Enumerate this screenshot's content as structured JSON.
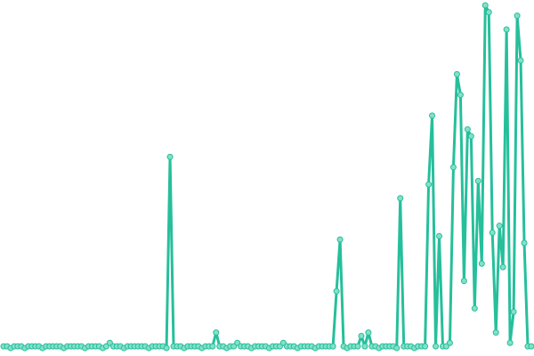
{
  "chart_data": {
    "type": "line",
    "color": "#26bf9b",
    "marker_fill": "#84e0c8",
    "ylim": [
      0,
      100
    ],
    "values": [
      1,
      1,
      0.5,
      1,
      1,
      1,
      0.5,
      1,
      1,
      1,
      1,
      0.5,
      1,
      1,
      1,
      1,
      1,
      0.5,
      1,
      1,
      1,
      1,
      1,
      0.5,
      1,
      1,
      1,
      1,
      0.5,
      1,
      2,
      1,
      1,
      1,
      0.5,
      1,
      1,
      1,
      1,
      1,
      1,
      0.5,
      1,
      1,
      1,
      1,
      0.5,
      56,
      1,
      1,
      1,
      0.5,
      1,
      1,
      1,
      1,
      0.5,
      1,
      1,
      1,
      5,
      1,
      1,
      0.5,
      1,
      1,
      2,
      1,
      1,
      1,
      0.5,
      1,
      1,
      1,
      1,
      0.5,
      1,
      1,
      1,
      2,
      1,
      1,
      1,
      0.5,
      1,
      1,
      1,
      1,
      0.5,
      1,
      1,
      1,
      1,
      1,
      17,
      32,
      1,
      0.5,
      1,
      1,
      1,
      4,
      1,
      5,
      1,
      1,
      0.5,
      1,
      1,
      1,
      1,
      0.5,
      44,
      1,
      1,
      1,
      0.5,
      1,
      1,
      1,
      48,
      68,
      1,
      33,
      1,
      1,
      2,
      53,
      80,
      74,
      20,
      64,
      62,
      12,
      49,
      25,
      100,
      98,
      34,
      5,
      36,
      24,
      93,
      2,
      11,
      97,
      84,
      31,
      1,
      1
    ]
  }
}
